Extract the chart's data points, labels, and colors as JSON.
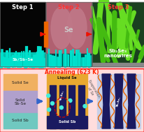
{
  "step_labels": [
    "Step 1",
    "Step 2",
    "Step 3"
  ],
  "step1_label": "Sb/Sb-Se",
  "step2_label": "Se",
  "step3_label1": "Sb₂Se₃",
  "step3_label2": "nanowires",
  "anneal_text": "Annealing (623 K)",
  "anneal_color": "#ff2200",
  "step1_bg": "#050505",
  "step1_teal": "#00e0cc",
  "step2_bg": "#b06070",
  "step2_mauve": "#c888a0",
  "step2_teal": "#00e0cc",
  "step3_bg": "#1a4020",
  "step3_green": "#66dd22",
  "step3_green2": "#44bb11",
  "arrow_top_color": "#ee1100",
  "panel_border": "#888888",
  "layer1_color": "#f0b060",
  "layer2_color": "#b0a0cc",
  "layer3_color": "#70c8c0",
  "layer1_label": "Solid Se",
  "layer2_label": "Solid\nSb-Se",
  "layer3_label": "Solid Sb",
  "bottom_bg": "#ffdddd",
  "bottom_border": "#ff4444",
  "mid_bg": "#e8a830",
  "mid_pillar": "#1a1a60",
  "mid_sb_bot": "#1a1a60",
  "mid_top_label": "Liquid Se",
  "mid_bot_label": "Solid Sb",
  "mid_dot_color": "#44eedd",
  "evap_color": "#555555",
  "right_bg": "#c8d0e8",
  "right_pillar": "#1a1a60",
  "right_line": "#ee6600",
  "sbse3_color": "#ffffff",
  "arrow_bot_color": "#3366cc",
  "red_circle_color": "#dd0000"
}
